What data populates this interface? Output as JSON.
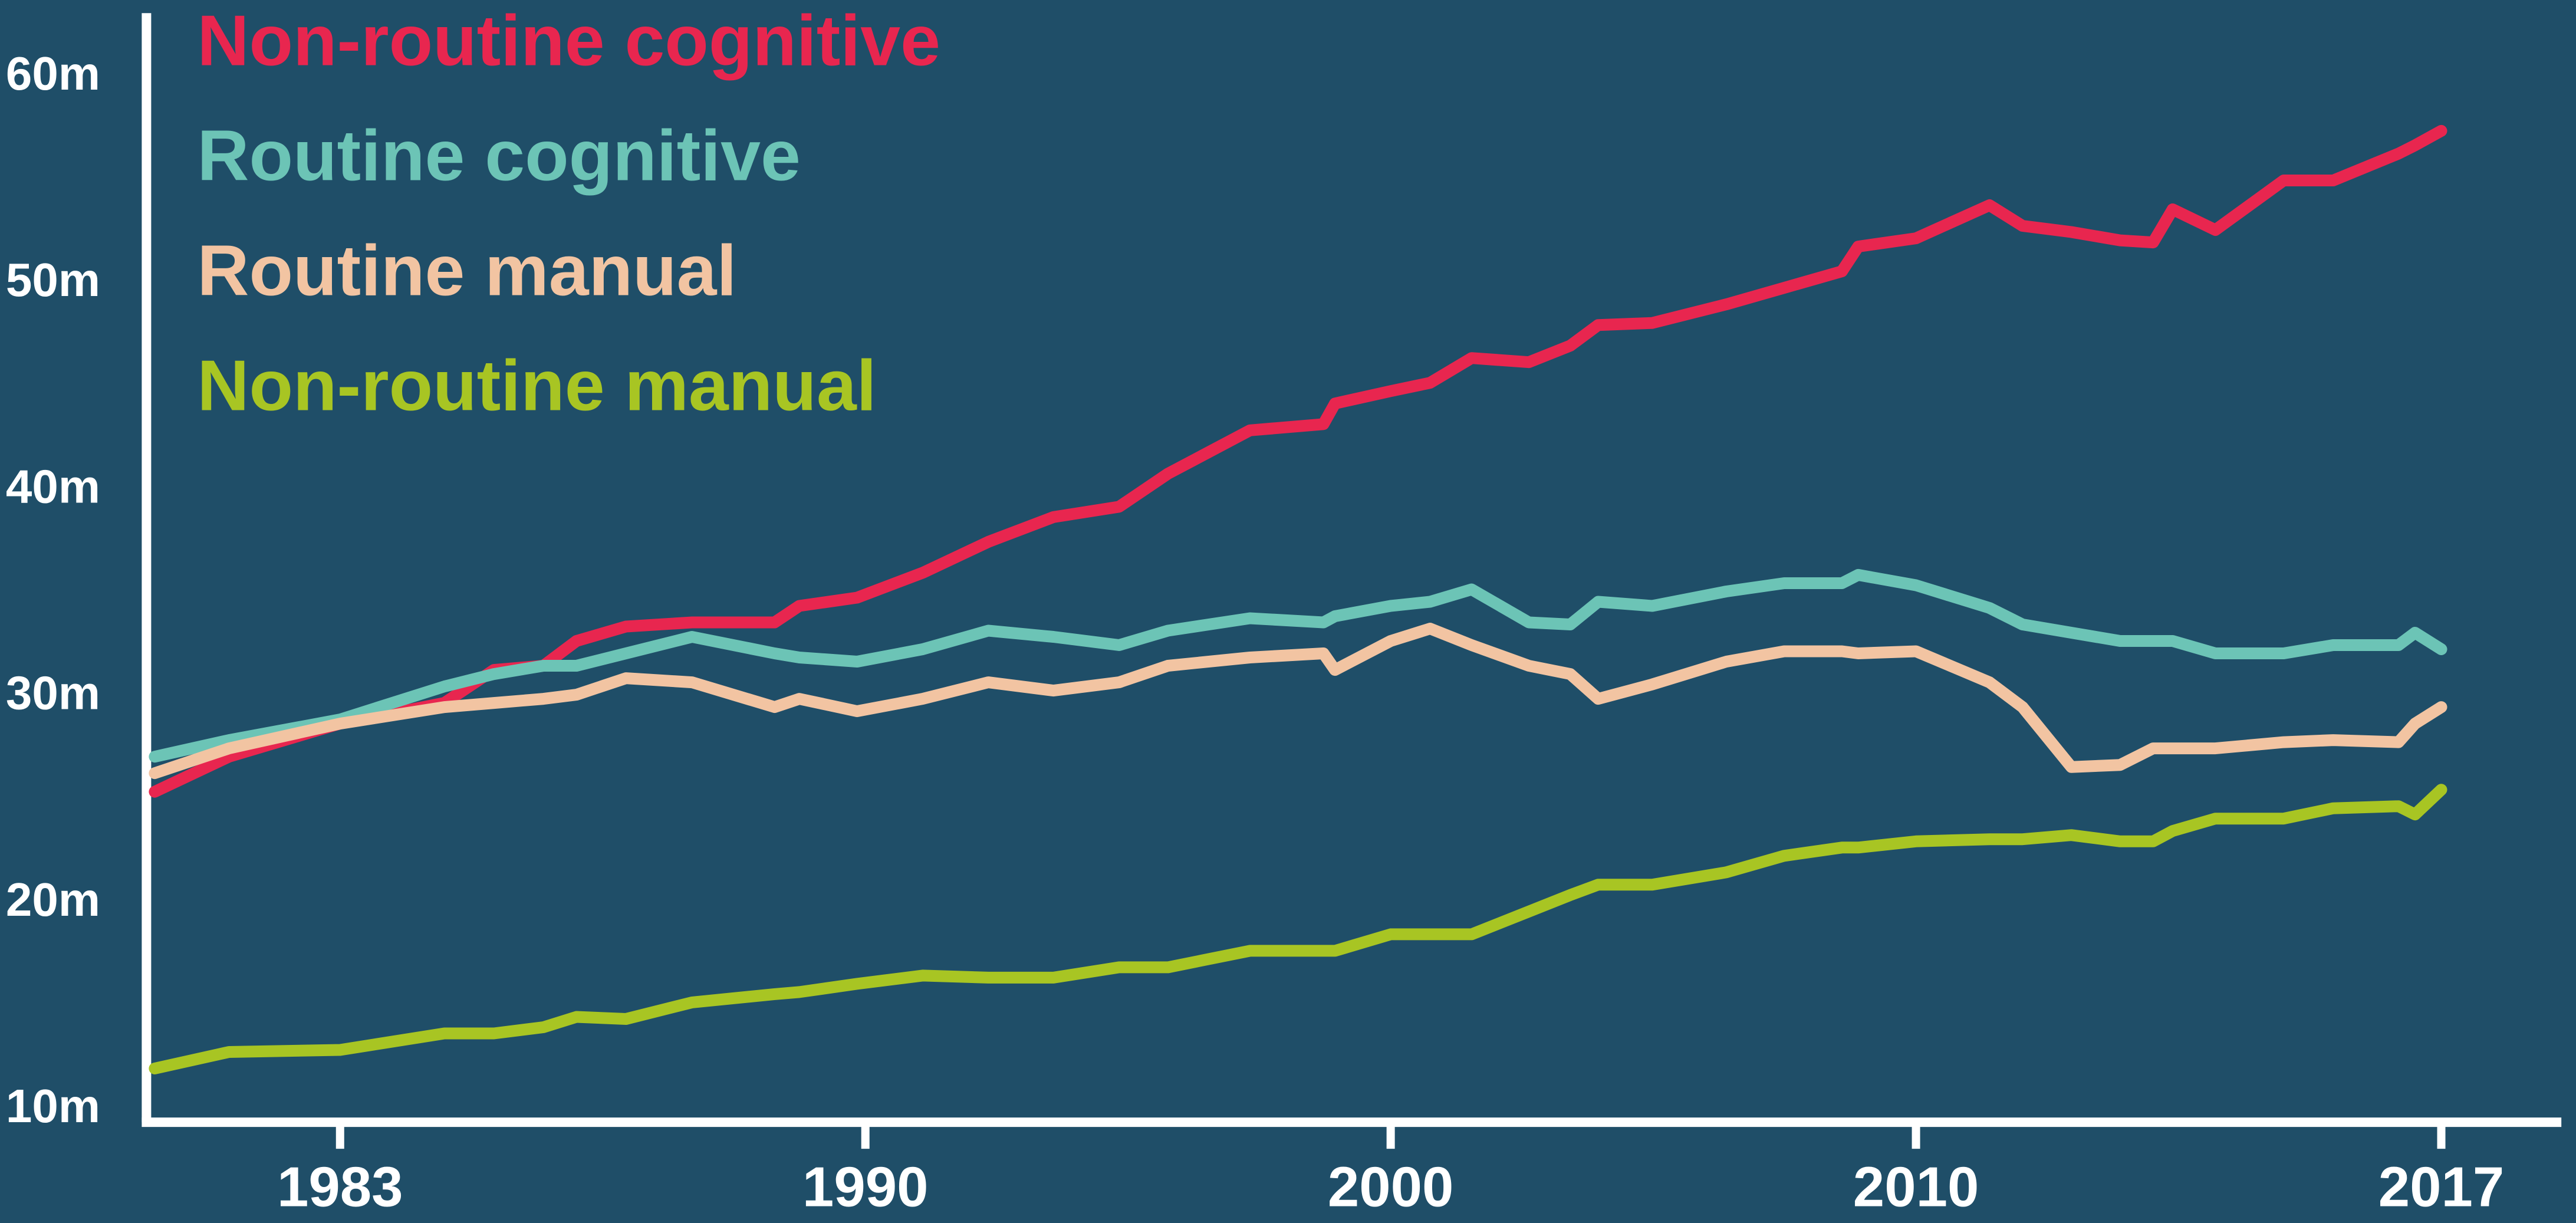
{
  "chart_data": {
    "type": "line",
    "x": [
      1980.53,
      1981.52,
      1983,
      1984.39,
      1985.05,
      1985.71,
      1986.15,
      1986.81,
      1987.69,
      1988.79,
      1989.12,
      1989.89,
      1991.09,
      1992.34,
      1993.58,
      1994.83,
      1995.76,
      1997.32,
      1998.72,
      1998.94,
      2000,
      2000.75,
      2001.54,
      2002.63,
      2003.42,
      2003.95,
      2004.98,
      2006.39,
      2007.49,
      2008.59,
      2008.9,
      2010,
      2010.98,
      2011.42,
      2012.07,
      2012.72,
      2013.16,
      2013.42,
      2013.99,
      2014.9,
      2015.56,
      2016.43,
      2016.65,
      2017
    ],
    "series": [
      {
        "name": "Non-routine cognitive",
        "color": "#e8264f",
        "values": [
          25.4,
          27.1,
          28.7,
          29.7,
          31.3,
          31.5,
          32.7,
          33.4,
          33.6,
          33.6,
          34.4,
          34.8,
          36.0,
          37.5,
          38.7,
          39.2,
          40.8,
          42.9,
          43.2,
          44.2,
          44.8,
          45.2,
          46.4,
          46.2,
          47.0,
          48.0,
          48.1,
          49.0,
          49.8,
          50.6,
          51.8,
          52.2,
          53.8,
          52.8,
          52.5,
          52.1,
          52.0,
          53.6,
          52.6,
          55.0,
          55.0,
          56.3,
          56.7,
          57.4
        ]
      },
      {
        "name": "Routine cognitive",
        "color": "#6cc4b6",
        "values": [
          27.1,
          27.9,
          28.9,
          30.5,
          31.1,
          31.5,
          31.5,
          32.1,
          32.9,
          32.1,
          31.9,
          31.7,
          32.3,
          33.2,
          32.9,
          32.5,
          33.2,
          33.8,
          33.6,
          33.9,
          34.4,
          34.6,
          35.2,
          33.6,
          33.5,
          34.6,
          34.4,
          35.1,
          35.5,
          35.5,
          35.9,
          35.4,
          34.3,
          33.5,
          33.1,
          32.7,
          32.7,
          32.7,
          32.1,
          32.1,
          32.5,
          32.5,
          33.1,
          32.3
        ]
      },
      {
        "name": "Routine manual",
        "color": "#f2c4a2",
        "values": [
          26.3,
          27.5,
          28.7,
          29.5,
          29.7,
          29.9,
          30.1,
          30.9,
          30.7,
          29.5,
          29.9,
          29.3,
          29.9,
          30.7,
          30.3,
          30.7,
          31.5,
          31.9,
          32.1,
          31.3,
          32.7,
          33.3,
          32.5,
          31.5,
          31.1,
          29.9,
          30.6,
          31.7,
          32.2,
          32.2,
          32.1,
          32.2,
          30.7,
          29.5,
          26.6,
          26.7,
          27.5,
          27.5,
          27.5,
          27.8,
          27.9,
          27.8,
          28.7,
          29.5
        ]
      },
      {
        "name": "Non-routine manual",
        "color": "#a8c523",
        "values": [
          12.0,
          12.8,
          12.9,
          13.7,
          13.7,
          14.0,
          14.5,
          14.4,
          15.2,
          15.6,
          15.7,
          16.1,
          16.5,
          16.4,
          16.4,
          16.9,
          16.9,
          17.7,
          17.7,
          17.7,
          18.5,
          18.5,
          18.5,
          19.6,
          20.4,
          20.9,
          20.9,
          21.5,
          22.3,
          22.7,
          22.7,
          23.0,
          23.1,
          23.1,
          23.3,
          23.0,
          23.0,
          23.5,
          24.1,
          24.1,
          24.6,
          24.7,
          24.3,
          25.5
        ]
      }
    ],
    "xlim": [
      1980.42,
      2018.6
    ],
    "xticks": [
      1983,
      1990,
      2000,
      2010,
      2017
    ],
    "ylim": [
      9.4,
      63.1
    ],
    "yticks": [
      {
        "value": 10,
        "label": "10m"
      },
      {
        "value": 20,
        "label": "20m"
      },
      {
        "value": 30,
        "label": "30m"
      },
      {
        "value": 40,
        "label": "40m"
      },
      {
        "value": 50,
        "label": "50m"
      },
      {
        "value": 60,
        "label": "60m"
      }
    ],
    "legend": "top-left"
  }
}
